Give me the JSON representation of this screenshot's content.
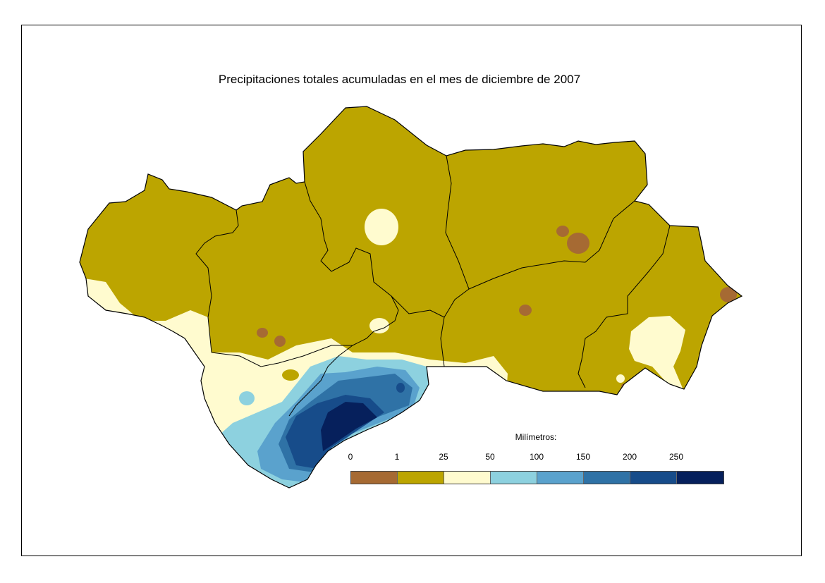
{
  "title": "Precipitaciones totales acumuladas en el mes de diciembre de 2007",
  "legend": {
    "title": "Milímetros:",
    "ticks": [
      "0",
      "1",
      "25",
      "50",
      "100",
      "150",
      "200",
      "250"
    ],
    "classes": [
      {
        "range": "0-1",
        "color": "#A66A33"
      },
      {
        "range": "1-25",
        "color": "#BCA500"
      },
      {
        "range": "25-50",
        "color": "#FFFBCF"
      },
      {
        "range": "50-100",
        "color": "#8DD1DF"
      },
      {
        "range": "100-150",
        "color": "#5AA2CD"
      },
      {
        "range": "150-200",
        "color": "#2F72A6"
      },
      {
        "range": "200-250",
        "color": "#174C8A"
      },
      {
        "range": ">250",
        "color": "#06205C"
      }
    ]
  },
  "colors": {
    "frame": "#000000",
    "boundary": "#000000"
  }
}
